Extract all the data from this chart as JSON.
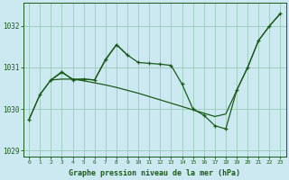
{
  "title": "Graphe pression niveau de la mer (hPa)",
  "bg_color": "#cce8f0",
  "grid_color": "#99ccbb",
  "line_color": "#1a5c1a",
  "smooth_x": [
    0,
    1,
    2,
    3,
    4,
    5,
    6,
    7,
    8,
    9,
    10,
    11,
    12,
    13,
    14,
    15,
    16,
    17,
    18,
    19,
    20,
    21,
    22,
    23
  ],
  "smooth_y": [
    1029.75,
    1030.35,
    1030.7,
    1030.72,
    1030.72,
    1030.68,
    1030.63,
    1030.58,
    1030.52,
    1030.45,
    1030.38,
    1030.3,
    1030.22,
    1030.14,
    1030.06,
    1029.98,
    1029.9,
    1029.82,
    1029.88,
    1030.45,
    1031.0,
    1031.65,
    1032.0,
    1032.3
  ],
  "volatile_x": [
    0,
    1,
    2,
    3,
    4,
    5,
    6,
    7,
    8,
    9,
    10,
    11,
    12,
    13,
    14,
    15,
    16,
    17,
    18,
    19,
    20,
    21,
    22,
    23
  ],
  "volatile_y": [
    1029.75,
    1030.35,
    1030.7,
    1030.9,
    1030.7,
    1030.72,
    1030.7,
    1031.2,
    1031.55,
    1031.3,
    1031.12,
    1031.1,
    1031.08,
    1031.05,
    1030.6,
    1030.0,
    1029.85,
    1029.6,
    1029.52,
    1030.45,
    1031.0,
    1031.65,
    1032.0,
    1032.3
  ],
  "upper_x": [
    2,
    3,
    4,
    5,
    6,
    7,
    8,
    9
  ],
  "upper_y": [
    1030.7,
    1030.88,
    1030.72,
    1030.72,
    1030.7,
    1031.18,
    1031.55,
    1031.3
  ],
  "xlim": [
    -0.5,
    23.5
  ],
  "ylim": [
    1028.85,
    1032.55
  ],
  "yticks": [
    1029,
    1030,
    1031,
    1032
  ],
  "xticks": [
    0,
    1,
    2,
    3,
    4,
    5,
    6,
    7,
    8,
    9,
    10,
    11,
    12,
    13,
    14,
    15,
    16,
    17,
    18,
    19,
    20,
    21,
    22,
    23
  ]
}
